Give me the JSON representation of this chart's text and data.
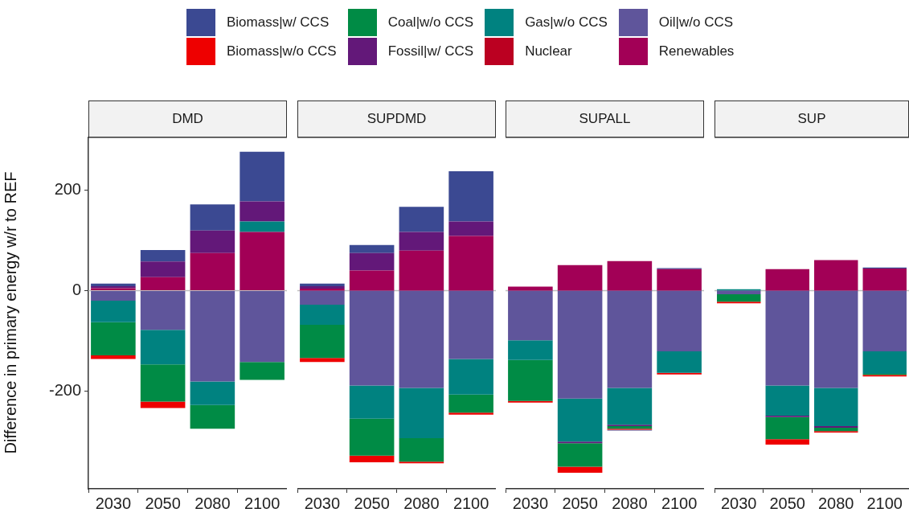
{
  "chart_data": [
    {
      "type": "bar",
      "title": "DMD",
      "ylabel": "Difference in primary energy w/r to REF",
      "categories": [
        "2030",
        "2050",
        "2080",
        "2100"
      ],
      "stacked": true,
      "legend": "top",
      "grid": false,
      "ylim": [
        -395,
        307
      ],
      "yticks": [
        -200,
        0,
        200
      ],
      "ref_lines": [
        {
          "axis": "y",
          "value": 0,
          "color": "#bebebe"
        }
      ],
      "series": [
        {
          "name": "Renewables",
          "color": "#a20056",
          "values": [
            5,
            27,
            75,
            117
          ]
        },
        {
          "name": "Oil|w/o CCS",
          "color": "#5f559b",
          "values": [
            -20,
            -78,
            -181,
            -142
          ]
        },
        {
          "name": "Nuclear",
          "color": "#bb0021",
          "values": [
            null,
            null,
            null,
            null
          ]
        },
        {
          "name": "Gas|w/o CCS",
          "color": "#008280",
          "values": [
            -43,
            -69,
            -47,
            21
          ]
        },
        {
          "name": "Fossil|w/ CCS",
          "color": "#631879",
          "values": [
            4,
            31,
            45,
            40
          ]
        },
        {
          "name": "Coal|w/o CCS",
          "color": "#008b45",
          "values": [
            -66,
            -74,
            -47,
            -36
          ]
        },
        {
          "name": "Biomass|w/o CCS",
          "color": "#ee0000",
          "values": [
            -7,
            -13,
            null,
            null
          ]
        },
        {
          "name": "Biomass|w/ CCS",
          "color": "#3b4992",
          "values": [
            5,
            23,
            52,
            99
          ]
        }
      ]
    },
    {
      "type": "bar",
      "title": "SUPDMD",
      "categories": [
        "2030",
        "2050",
        "2080",
        "2100"
      ],
      "stacked": true,
      "grid": false,
      "tick_labels": "x",
      "ylim": [
        -395,
        307
      ],
      "ref_lines": [
        {
          "axis": "y",
          "value": 0,
          "color": "#bebebe"
        }
      ],
      "series": [
        {
          "name": "Renewables",
          "color": "#a20056",
          "values": [
            4,
            40,
            80,
            109
          ]
        },
        {
          "name": "Oil|w/o CCS",
          "color": "#5f559b",
          "values": [
            -28,
            -189,
            -194,
            -136
          ]
        },
        {
          "name": "Gas|w/o CCS",
          "color": "#008280",
          "values": [
            -40,
            -66,
            -100,
            -71
          ]
        },
        {
          "name": "Fossil|w/ CCS",
          "color": "#631879",
          "values": [
            5,
            35,
            37,
            29
          ]
        },
        {
          "name": "Coal|w/o CCS",
          "color": "#008b45",
          "values": [
            -66,
            -74,
            -47,
            -36
          ]
        },
        {
          "name": "Biomass|w/o CCS",
          "color": "#ee0000",
          "values": [
            -8,
            -13,
            -3,
            -4
          ]
        },
        {
          "name": "Biomass|w/ CCS",
          "color": "#3b4992",
          "values": [
            5,
            16,
            50,
            100
          ]
        }
      ]
    },
    {
      "type": "bar",
      "title": "SUPALL",
      "categories": [
        "2030",
        "2050",
        "2080",
        "2100"
      ],
      "stacked": true,
      "grid": false,
      "tick_labels": "x",
      "ylim": [
        -395,
        307
      ],
      "ref_lines": [
        {
          "axis": "y",
          "value": 0,
          "color": "#bebebe"
        }
      ],
      "series": [
        {
          "name": "Renewables",
          "color": "#a20056",
          "values": [
            8,
            51,
            59,
            43
          ]
        },
        {
          "name": "Oil|w/o CCS",
          "color": "#5f559b",
          "values": [
            -99,
            -215,
            -194,
            -121
          ]
        },
        {
          "name": "Gas|w/o CCS",
          "color": "#008280",
          "values": [
            -39,
            -86,
            -73,
            -43
          ]
        },
        {
          "name": "Fossil|w/ CCS",
          "color": "#631879",
          "values": [
            null,
            -3,
            -3,
            null
          ]
        },
        {
          "name": "Coal|w/o CCS",
          "color": "#008b45",
          "values": [
            -82,
            -47,
            -5,
            null
          ]
        },
        {
          "name": "Biomass|w/o CCS",
          "color": "#ee0000",
          "values": [
            -3,
            -12,
            -2,
            -3
          ]
        },
        {
          "name": "Biomass|w/ CCS",
          "color": "#3b4992",
          "values": [
            null,
            null,
            -2,
            2
          ]
        }
      ]
    },
    {
      "type": "bar",
      "title": "SUP",
      "categories": [
        "2030",
        "2050",
        "2080",
        "2100"
      ],
      "stacked": true,
      "grid": false,
      "tick_labels": "x",
      "ylim": [
        -395,
        307
      ],
      "ref_lines": [
        {
          "axis": "y",
          "value": 0,
          "color": "#bebebe"
        }
      ],
      "series": [
        {
          "name": "Renewables",
          "color": "#a20056",
          "values": [
            null,
            43,
            61,
            44
          ]
        },
        {
          "name": "Oil|w/o CCS",
          "color": "#5f559b",
          "values": [
            -7,
            -189,
            -194,
            -121
          ]
        },
        {
          "name": "Gas|w/o CCS",
          "color": "#008280",
          "values": [
            3,
            -60,
            -76,
            -45
          ]
        },
        {
          "name": "Fossil|w/ CCS",
          "color": "#631879",
          "values": [
            null,
            -3,
            -3,
            null
          ]
        },
        {
          "name": "Coal|w/o CCS",
          "color": "#008b45",
          "values": [
            -15,
            -44,
            -7,
            -2
          ]
        },
        {
          "name": "Biomass|w/o CCS",
          "color": "#ee0000",
          "values": [
            -3,
            -11,
            -3,
            -3
          ]
        },
        {
          "name": "Biomass|w/ CCS",
          "color": "#3b4992",
          "values": [
            null,
            null,
            null,
            2
          ]
        }
      ]
    }
  ]
}
